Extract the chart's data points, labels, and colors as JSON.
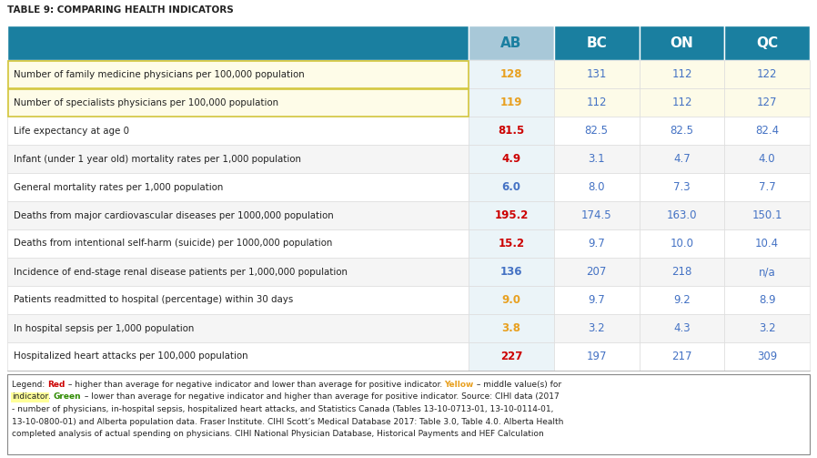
{
  "title": "TABLE 9: COMPARING HEALTH INDICATORS",
  "columns": [
    "AB",
    "BC",
    "ON",
    "QC"
  ],
  "rows": [
    {
      "label": "Number of family medicine physicians per 100,000 population",
      "values": [
        "128",
        "131",
        "112",
        "122"
      ],
      "ab_color": "#E8A020",
      "row_bg": "#FDFBE8",
      "label_bg": "#FDFBE8",
      "yellow_label": true
    },
    {
      "label": "Number of specialists physicians per 100,000 population",
      "values": [
        "119",
        "112",
        "112",
        "127"
      ],
      "ab_color": "#E8A020",
      "row_bg": "#FDFBE8",
      "label_bg": "#FDFBE8",
      "yellow_label": true
    },
    {
      "label": "Life expectancy at age 0",
      "values": [
        "81.5",
        "82.5",
        "82.5",
        "82.4"
      ],
      "ab_color": "#CC0000",
      "row_bg": "#FFFFFF",
      "label_bg": "#FFFFFF",
      "yellow_label": false
    },
    {
      "label": "Infant (under 1 year old) mortality rates per 1,000 population",
      "values": [
        "4.9",
        "3.1",
        "4.7",
        "4.0"
      ],
      "ab_color": "#CC0000",
      "row_bg": "#F5F5F5",
      "label_bg": "#F5F5F5",
      "yellow_label": false
    },
    {
      "label": "General mortality rates per 1,000 population",
      "values": [
        "6.0",
        "8.0",
        "7.3",
        "7.7"
      ],
      "ab_color": "#4472C4",
      "row_bg": "#FFFFFF",
      "label_bg": "#FFFFFF",
      "yellow_label": false
    },
    {
      "label": "Deaths from major cardiovascular diseases per 1000,000 population",
      "values": [
        "195.2",
        "174.5",
        "163.0",
        "150.1"
      ],
      "ab_color": "#CC0000",
      "row_bg": "#F5F5F5",
      "label_bg": "#F5F5F5",
      "yellow_label": false
    },
    {
      "label": "Deaths from intentional self-harm (suicide) per 1000,000 population",
      "values": [
        "15.2",
        "9.7",
        "10.0",
        "10.4"
      ],
      "ab_color": "#CC0000",
      "row_bg": "#FFFFFF",
      "label_bg": "#FFFFFF",
      "yellow_label": false
    },
    {
      "label": "Incidence of end-stage renal disease patients per 1,000,000 population",
      "values": [
        "136",
        "207",
        "218",
        "n/a"
      ],
      "ab_color": "#4472C4",
      "row_bg": "#F5F5F5",
      "label_bg": "#F5F5F5",
      "yellow_label": false
    },
    {
      "label": "Patients readmitted to hospital (percentage) within 30 days",
      "values": [
        "9.0",
        "9.7",
        "9.2",
        "8.9"
      ],
      "ab_color": "#E8A020",
      "row_bg": "#FFFFFF",
      "label_bg": "#FFFFFF",
      "yellow_label": false
    },
    {
      "label": "In hospital sepsis per 1,000 population",
      "values": [
        "3.8",
        "3.2",
        "4.3",
        "3.2"
      ],
      "ab_color": "#E8A020",
      "row_bg": "#F5F5F5",
      "label_bg": "#F5F5F5",
      "yellow_label": false
    },
    {
      "label": "Hospitalized heart attacks per 100,000 population",
      "values": [
        "227",
        "197",
        "217",
        "309"
      ],
      "ab_color": "#CC0000",
      "row_bg": "#FFFFFF",
      "label_bg": "#FFFFFF",
      "yellow_label": false
    }
  ],
  "header_bg_main": "#1A7FA0",
  "header_bg_ab": "#A8C8D8",
  "header_text_color": "#FFFFFF",
  "header_ab_text_color": "#1A7FA0",
  "data_text_color": "#4472C4",
  "title_color": "#222222",
  "legend_lines": [
    "Legend: {Red} – higher than average for negative indicator and lower than average for positive indicator. {Yellow} – {middle value(s) for",
    "indicator}. {Green} – lower than average for negative indicator and higher than average for positive indicator. Source: CIHI data (2017",
    "- number of physicians, in-hospital sepsis, hospitalized heart attacks, and Statistics Canada (Tables 13-10-0713-01, 13-10-0114-01,",
    "13-10-0800-01) and Alberta population data. Fraser Institute. CIHI Scott’s Medical Database 2017: Table 3.0, Table 4.0. Alberta Health",
    "completed analysis of actual spending on physicians. CIHI National Physician Database, Historical Payments and HEF Calculation"
  ],
  "fig_width": 8.98,
  "fig_height": 5.03,
  "dpi": 100
}
